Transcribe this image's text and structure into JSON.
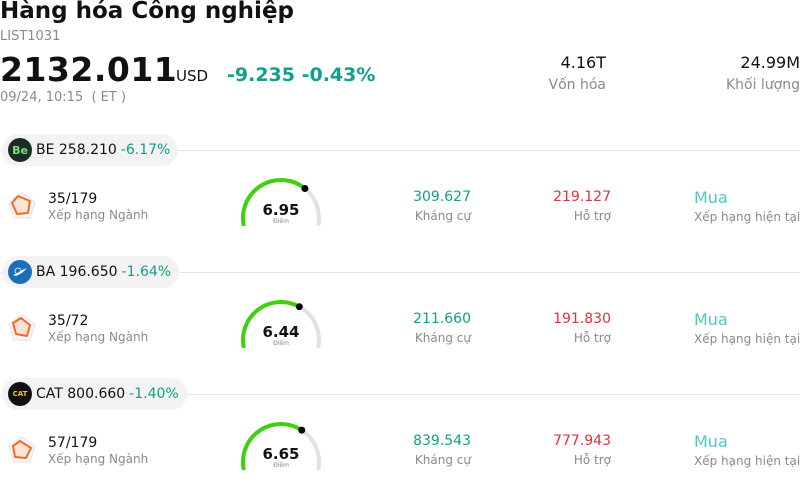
{
  "header": {
    "title": "Hàng hóa Công nghiệp",
    "code": "LIST1031",
    "price": "2132.011",
    "currency": "USD",
    "change": "-9.235 -0.43%",
    "datetime": "09/24, 10:15  ( ET )"
  },
  "stats": [
    {
      "value": "4.16T",
      "label": "Vốn hóa"
    },
    {
      "value": "24.99M",
      "label": "Khối lượng"
    }
  ],
  "colors": {
    "up": "#12a08a",
    "down": "#e0313b",
    "signal": "#4ec9c0",
    "gauge_fill": "#3fd010",
    "gauge_track": "#e1e1e8"
  },
  "stocks": [
    {
      "ticker_price": "BE 258.210",
      "change_pct": "-6.17%",
      "logo_text": "Be",
      "logo_icon": "bloom-energy-logo",
      "rank": "35/179",
      "rank_label": "Xếp hạng Ngành",
      "score": 6.95,
      "score_text": "6.95",
      "score_label": "Điểm",
      "resistance": "309.627",
      "resistance_label": "Kháng cự",
      "support": "219.127",
      "support_label": "Hỗ trợ",
      "signal": "Mua",
      "signal_label": "Xếp hạng hiện tại"
    },
    {
      "ticker_price": "BA 196.650",
      "change_pct": "-1.64%",
      "logo_text": "",
      "logo_icon": "boeing-logo",
      "rank": "35/72",
      "rank_label": "Xếp hạng Ngành",
      "score": 6.44,
      "score_text": "6.44",
      "score_label": "Điểm",
      "resistance": "211.660",
      "resistance_label": "Kháng cự",
      "support": "191.830",
      "support_label": "Hỗ trợ",
      "signal": "Mua",
      "signal_label": "Xếp hạng hiện tại"
    },
    {
      "ticker_price": "CAT 800.660",
      "change_pct": "-1.40%",
      "logo_text": "CAT",
      "logo_icon": "caterpillar-logo",
      "rank": "57/179",
      "rank_label": "Xếp hạng Ngành",
      "score": 6.65,
      "score_text": "6.65",
      "score_label": "Điểm",
      "resistance": "839.543",
      "resistance_label": "Kháng cự",
      "support": "777.943",
      "support_label": "Hỗ trợ",
      "signal": "Mua",
      "signal_label": "Xếp hạng hiện tại"
    }
  ]
}
